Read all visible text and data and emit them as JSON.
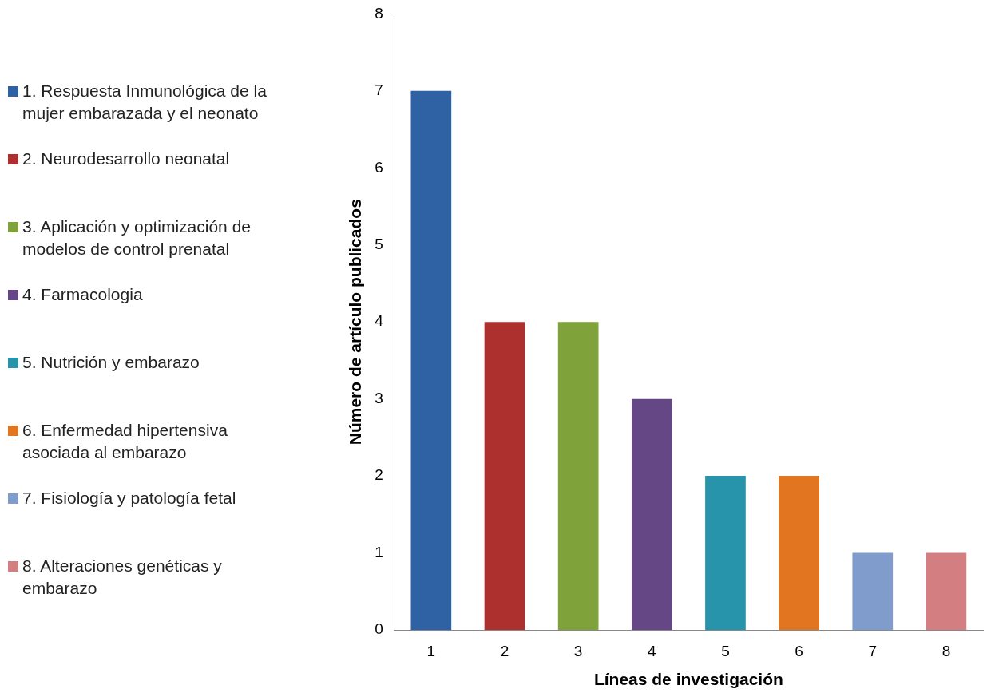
{
  "chart_data": {
    "type": "bar",
    "xlabel": "Líneas de investigación",
    "ylabel": "Número de artículo publicados",
    "categories": [
      "1",
      "2",
      "3",
      "4",
      "5",
      "6",
      "7",
      "8"
    ],
    "ylim": [
      0,
      8
    ],
    "yticks": [
      0,
      1,
      2,
      3,
      4,
      5,
      6,
      7,
      8
    ],
    "grid": false,
    "legend": "left",
    "series": [
      {
        "name": "1. Respuesta Inmunológica de la mujer embarazada y el neonato",
        "color": "#2f62a4",
        "values": [
          7,
          null,
          null,
          null,
          null,
          null,
          null,
          null
        ]
      },
      {
        "name": "2. Neurodesarrollo neonatal",
        "color": "#ad302e",
        "values": [
          null,
          4,
          null,
          null,
          null,
          null,
          null,
          null
        ]
      },
      {
        "name": "3. Aplicación y optimización de modelos de control prenatal",
        "color": "#7fa23b",
        "values": [
          null,
          null,
          4,
          null,
          null,
          null,
          null,
          null
        ]
      },
      {
        "name": "4. Farmacologia",
        "color": "#654786",
        "values": [
          null,
          null,
          null,
          3,
          null,
          null,
          null,
          null
        ]
      },
      {
        "name": "5. Nutrición y embarazo",
        "color": "#2794ac",
        "values": [
          null,
          null,
          null,
          null,
          2,
          null,
          null,
          null
        ]
      },
      {
        "name": "6. Enfermedad hipertensiva asociada al embarazo",
        "color": "#e27620",
        "values": [
          null,
          null,
          null,
          null,
          null,
          2,
          null,
          null
        ]
      },
      {
        "name": "7. Fisiología y patología fetal",
        "color": "#7f9ccc",
        "values": [
          null,
          null,
          null,
          null,
          null,
          null,
          1,
          null
        ]
      },
      {
        "name": "8. Alteraciones genéticas y embarazo",
        "color": "#d37f82",
        "values": [
          null,
          null,
          null,
          null,
          null,
          null,
          null,
          1
        ]
      }
    ]
  }
}
